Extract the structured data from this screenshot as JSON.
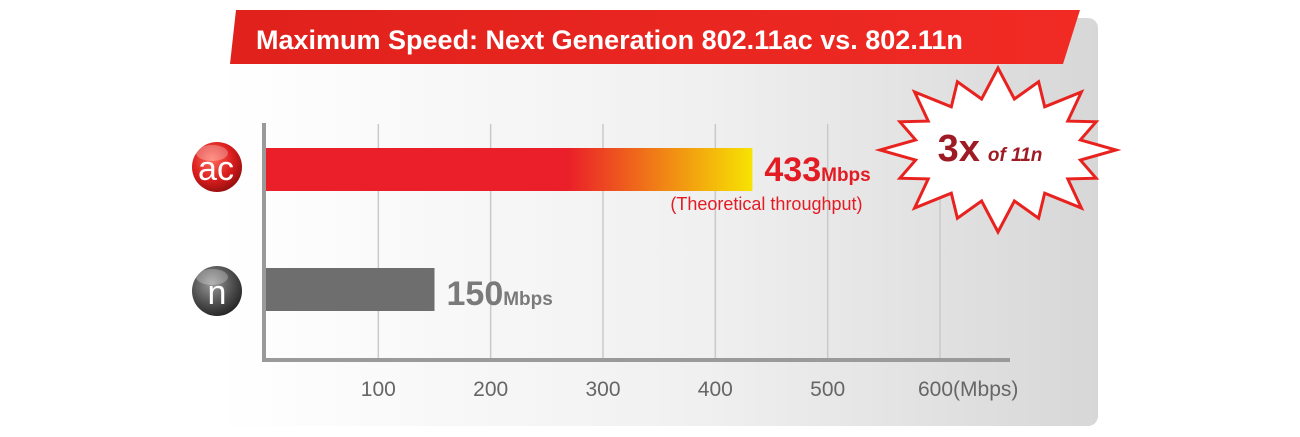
{
  "title": "Maximum Speed: Next Generation 802.11ac vs. 802.11n",
  "badges": {
    "ac": "ac",
    "n": "n"
  },
  "callout": {
    "multiplier": "3x",
    "text": "of 11n"
  },
  "colors": {
    "banner": "#e8221f",
    "ac_bar_start": "#ea1f29",
    "ac_bar_end": "#f7e303",
    "n_bar": "#6e6e6e",
    "ac_label": "#e31b23",
    "n_label": "#7a7a7a",
    "callout_text": "#9e1b25",
    "callout_border": "#e8221f"
  },
  "chart_data": {
    "type": "bar",
    "orientation": "horizontal",
    "title": "Maximum Speed: Next Generation 802.11ac vs. 802.11n",
    "categories": [
      "ac",
      "n"
    ],
    "values": [
      433,
      150
    ],
    "value_labels": [
      {
        "number": "433",
        "unit": "Mbps",
        "note": "(Theoretical throughput)"
      },
      {
        "number": "150",
        "unit": "Mbps",
        "note": ""
      }
    ],
    "x_ticks": [
      "100",
      "200",
      "300",
      "400",
      "500",
      "600(Mbps)"
    ],
    "x_tick_values": [
      100,
      200,
      300,
      400,
      500,
      600
    ],
    "xlim": [
      0,
      600
    ],
    "grid": true,
    "legend": false
  }
}
